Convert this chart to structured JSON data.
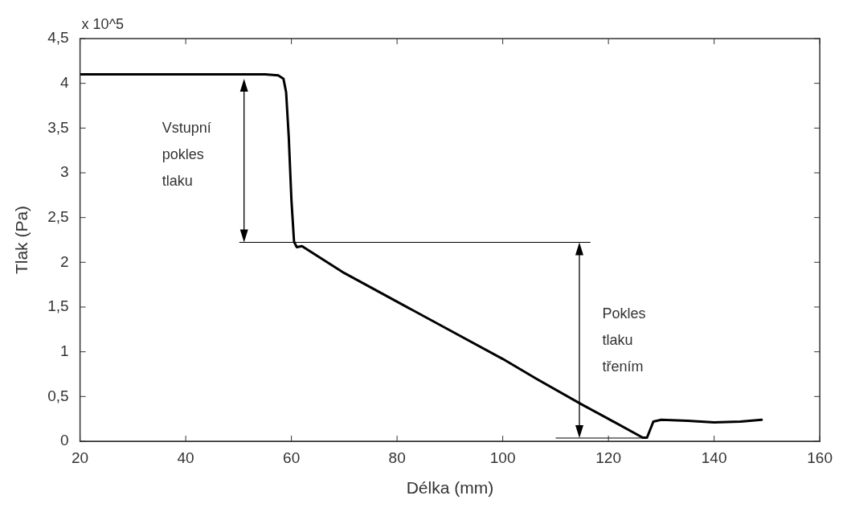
{
  "chart_data": {
    "type": "line",
    "xlabel": "Délka (mm)",
    "ylabel": "Tlak (Pa)",
    "xlim": [
      20,
      160
    ],
    "xticks": [
      20,
      40,
      60,
      80,
      100,
      120,
      140,
      160
    ],
    "ylim": [
      0,
      4.5
    ],
    "yticks": [
      0,
      {
        "value": 0.5,
        "label": "0,5"
      },
      1,
      {
        "value": 1.5,
        "label": "1,5"
      },
      2,
      {
        "value": 2.5,
        "label": "2,5"
      },
      3,
      {
        "value": 3.5,
        "label": "3,5"
      },
      4,
      {
        "value": 4.5,
        "label": "4,5"
      }
    ],
    "grid": false,
    "legend": false,
    "marker": "none",
    "line_style": "solid",
    "series": [
      {
        "color": "#000000",
        "x": [
          20,
          40,
          55,
          57.5,
          58.5,
          59,
          59.5,
          60,
          60.5,
          61,
          62,
          70,
          80,
          90,
          100,
          106.3,
          115,
          120,
          126.5,
          127.3,
          128.5,
          130,
          135,
          140,
          145,
          149
        ],
        "values": [
          4.1,
          4.1,
          4.1,
          4.09,
          4.05,
          3.9,
          3.4,
          2.7,
          2.23,
          2.17,
          2.18,
          1.88,
          1.56,
          1.24,
          0.92,
          0.7,
          0.41,
          0.25,
          0.04,
          0.04,
          0.22,
          0.24,
          0.23,
          0.21,
          0.22,
          0.24
        ]
      }
    ],
    "annotations": [
      "x 10^5",
      "Vstupní pokles tlaku",
      "Pokles tlaku třením"
    ]
  }
}
